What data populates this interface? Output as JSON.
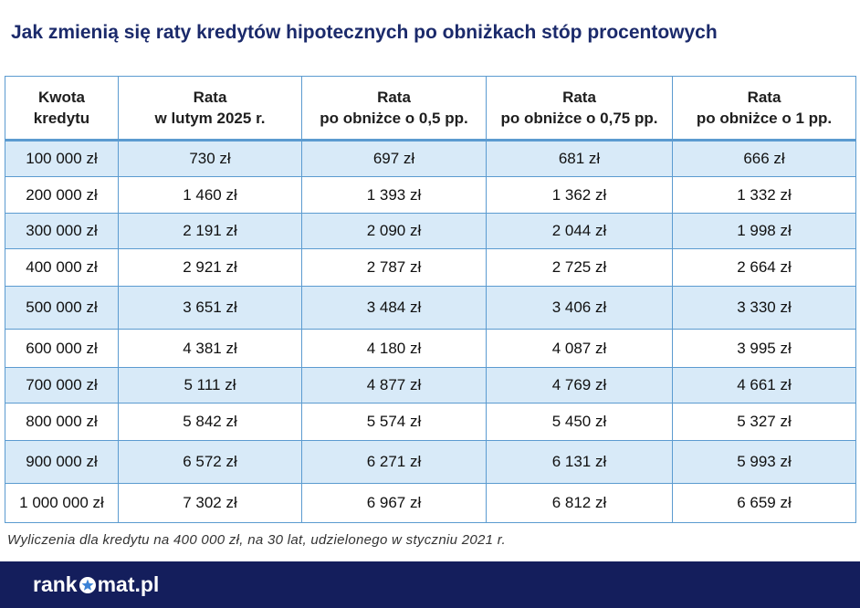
{
  "title": "Jak zmienią się raty kredytów hipotecznych po obniżkach stóp procentowych",
  "table": {
    "header": [
      [
        "Kwota",
        "kredytu"
      ],
      [
        "Rata",
        "w lutym 2025 r."
      ],
      [
        "Rata",
        "po obniżce o 0,5 pp."
      ],
      [
        "Rata",
        "po obniżce o 0,75 pp."
      ],
      [
        "Rata",
        "po obniżce o 1 pp."
      ]
    ],
    "rows": [
      [
        "100 000 zł",
        "730 zł",
        "697 zł",
        "681 zł",
        "666 zł"
      ],
      [
        "200 000 zł",
        "1 460 zł",
        "1 393 zł",
        "1 362 zł",
        "1 332 zł"
      ],
      [
        "300 000 zł",
        "2 191 zł",
        "2 090 zł",
        "2 044 zł",
        "1 998 zł"
      ],
      [
        "400 000 zł",
        "2 921 zł",
        "2 787 zł",
        "2 725 zł",
        "2 664 zł"
      ],
      [
        "500 000 zł",
        "3 651 zł",
        "3 484 zł",
        "3 406 zł",
        "3 330 zł"
      ],
      [
        "600 000 zł",
        "4 381 zł",
        "4 180 zł",
        "4 087 zł",
        "3 995 zł"
      ],
      [
        "700 000 zł",
        "5 111 zł",
        "4 877 zł",
        "4 769 zł",
        "4 661 zł"
      ],
      [
        "800 000 zł",
        "5 842 zł",
        "5 574 zł",
        "5 450 zł",
        "5 327 zł"
      ],
      [
        "900 000 zł",
        "6 572 zł",
        "6 271 zł",
        "6 131 zł",
        "5 993 zł"
      ],
      [
        "1 000 000 zł",
        "7 302 zł",
        "6 967 zł",
        "6 812 zł",
        "6 659 zł"
      ]
    ]
  },
  "note": "Wyliczenia dla kredytu na 400 000 zł, na 30 lat, udzielonego w styczniu 2021 r.",
  "footer": {
    "logo_start": "rank",
    "logo_end": "mat.pl"
  }
}
